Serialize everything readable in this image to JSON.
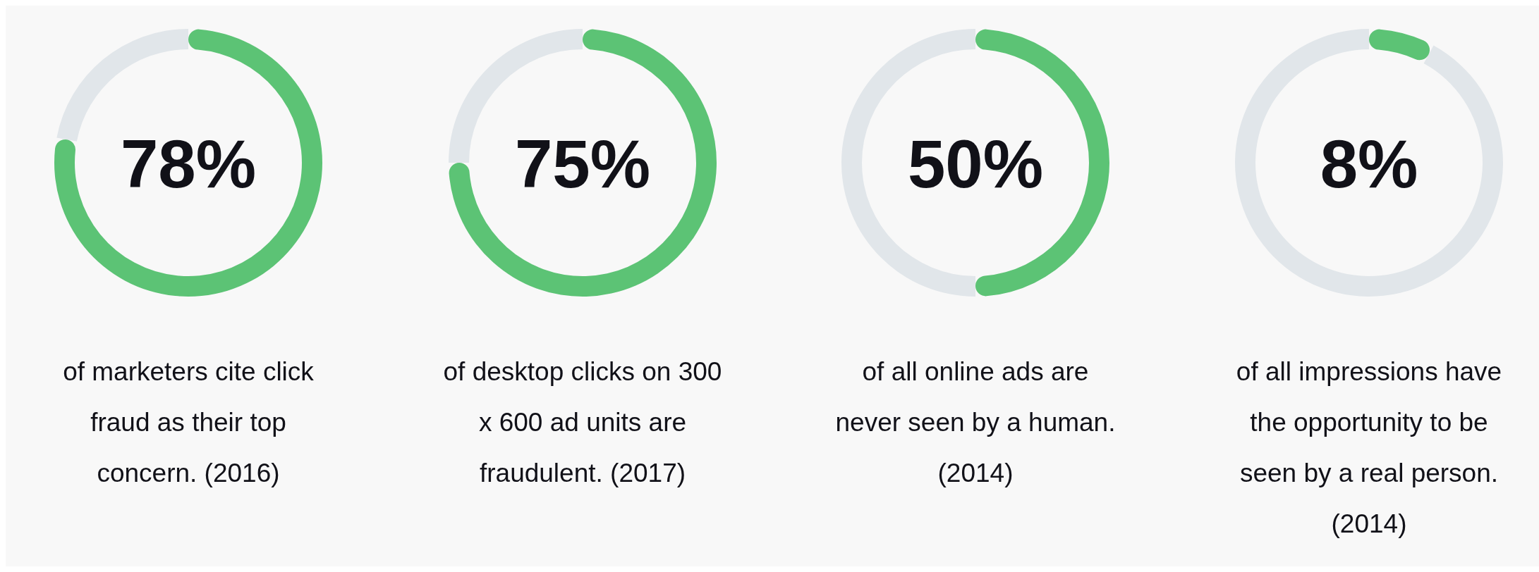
{
  "chart_data": [
    {
      "type": "donut",
      "title": "78%",
      "categories": [
        null,
        null
      ],
      "values": [
        78,
        22
      ],
      "colors": [
        "#5cc375",
        "#e1e6ea"
      ],
      "annotations": [
        "of marketers cite click fraud as their top concern. (2016)"
      ]
    },
    {
      "type": "donut",
      "title": "75%",
      "categories": [
        null,
        null
      ],
      "values": [
        75,
        25
      ],
      "colors": [
        "#5cc375",
        "#e1e6ea"
      ],
      "annotations": [
        "of desktop clicks on 300 x 600 ad units are fraudulent. (2017)"
      ]
    },
    {
      "type": "donut",
      "title": "50%",
      "categories": [
        null,
        null
      ],
      "values": [
        50,
        50
      ],
      "colors": [
        "#5cc375",
        "#e1e6ea"
      ],
      "annotations": [
        "of all online ads are never seen by a human. (2014)"
      ]
    },
    {
      "type": "donut",
      "title": "8%",
      "categories": [
        null,
        null
      ],
      "values": [
        8,
        92
      ],
      "colors": [
        "#5cc375",
        "#e1e6ea"
      ],
      "annotations": [
        "of all impressions have the opportunity to be seen by a real person. (2014)"
      ]
    }
  ]
}
